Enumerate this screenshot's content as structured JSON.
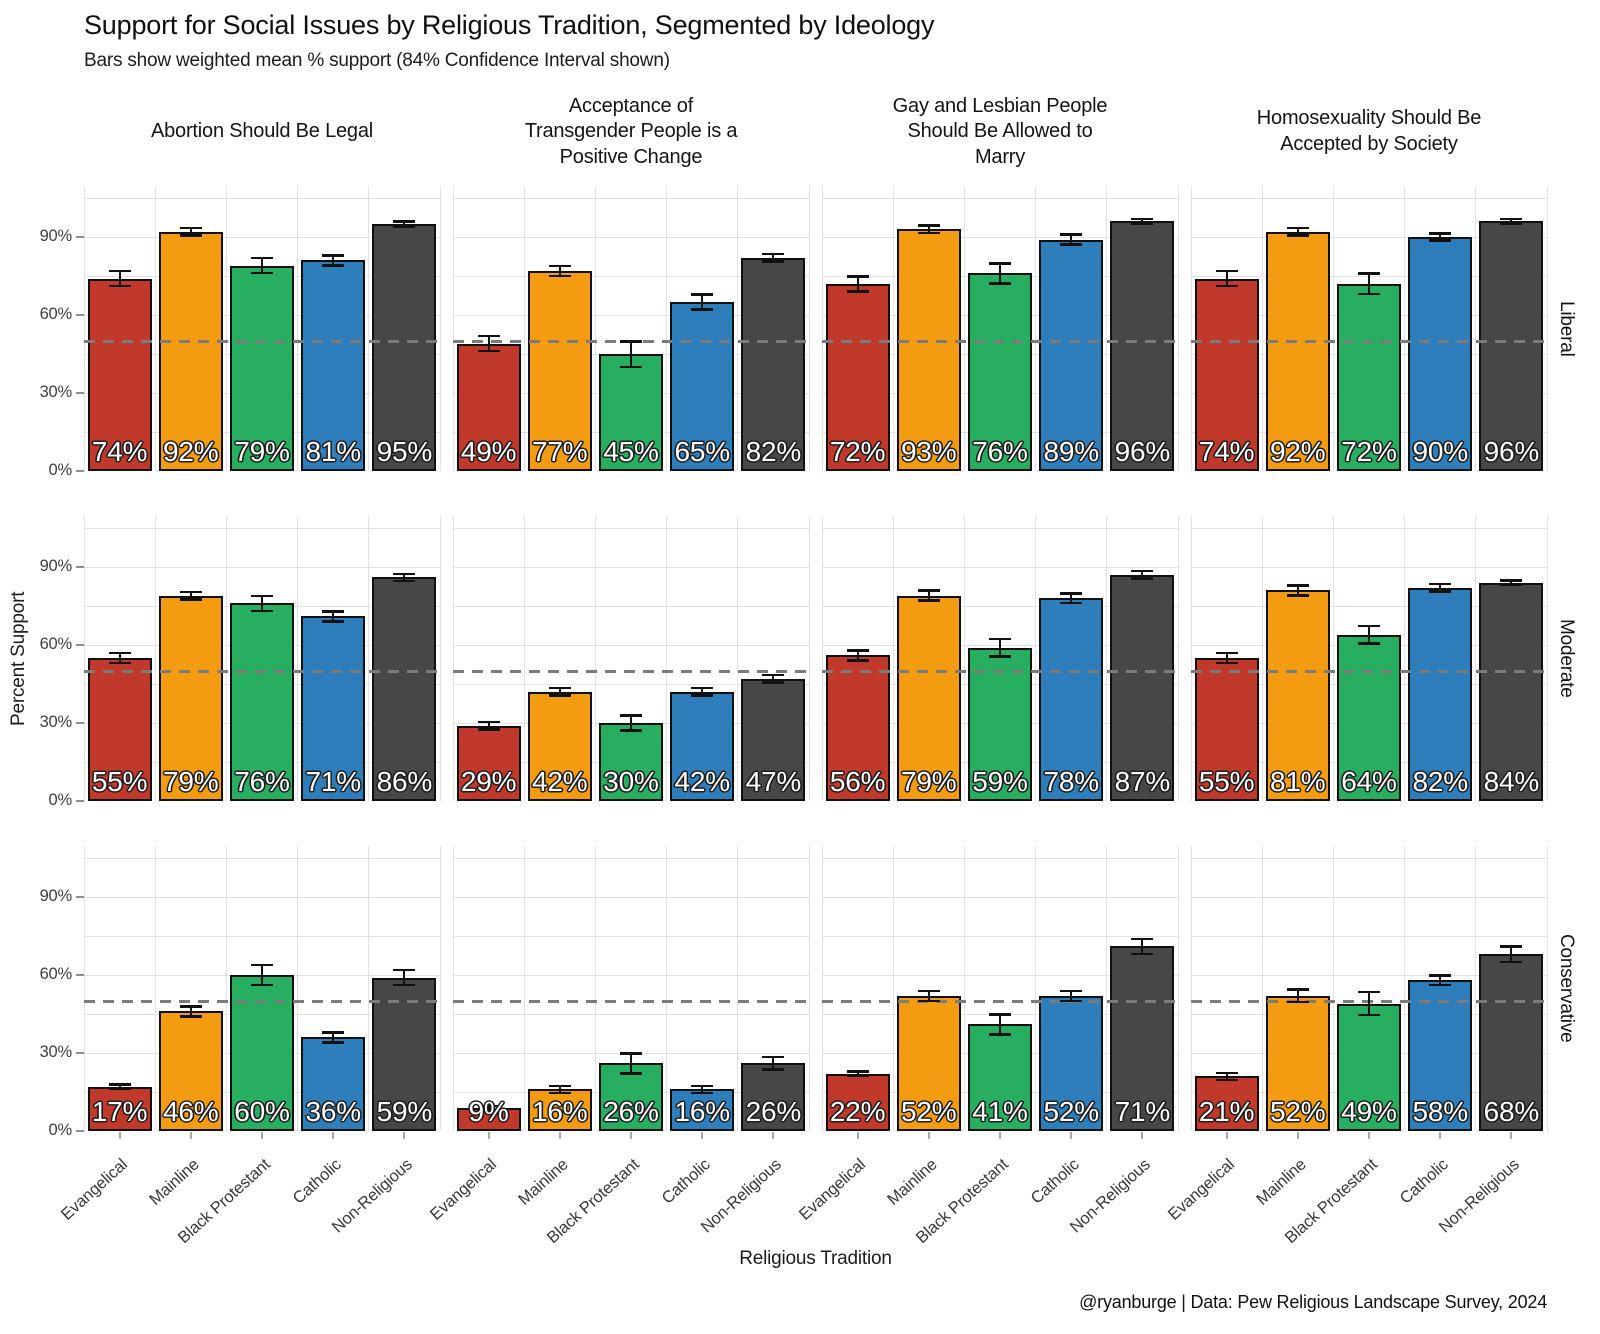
{
  "chart_data": {
    "type": "bar",
    "title": "Support for Social Issues by Religious Tradition, Segmented by Ideology",
    "subtitle": "Bars show weighted mean % support (84% Confidence Interval shown)",
    "caption": "@ryanburge | Data: Pew Religious Landscape Survey, 2024",
    "xlabel": "Religious Tradition",
    "ylabel": "Percent Support",
    "legend_position": "none",
    "grid": true,
    "y_axis": {
      "ticks": [
        0,
        30,
        60,
        90
      ],
      "tick_labels": [
        "0%",
        "30%",
        "60%",
        "90%"
      ],
      "ylim": [
        0,
        109
      ]
    },
    "reference_line_pct": 50,
    "categories": [
      "Evangelical",
      "Mainline",
      "Black Protestant",
      "Catholic",
      "Non-Religious"
    ],
    "category_colors": [
      "#C1392B",
      "#F39C12",
      "#27AE60",
      "#2E7EBB",
      "#474747"
    ],
    "col_facets": [
      "Abortion Should Be Legal",
      "Acceptance of\nTransgender People is a\nPositive Change",
      "Gay and Lesbian People\nShould Be Allowed to\nMarry",
      "Homosexuality Should Be\nAccepted by Society"
    ],
    "row_facets": [
      "Liberal",
      "Moderate",
      "Conservative"
    ],
    "cells": [
      {
        "row": "Liberal",
        "col": "Abortion Should Be Legal",
        "values": [
          74,
          92,
          79,
          81,
          95
        ],
        "ci": [
          3,
          1.5,
          3,
          2,
          1
        ],
        "labels": [
          "74%",
          "92%",
          "79%",
          "81%",
          "95%"
        ]
      },
      {
        "row": "Liberal",
        "col": "Acceptance of Transgender People is a Positive Change",
        "values": [
          49,
          77,
          45,
          65,
          82
        ],
        "ci": [
          3,
          2,
          5,
          3,
          1.5
        ],
        "labels": [
          "49%",
          "77%",
          "45%",
          "65%",
          "82%"
        ]
      },
      {
        "row": "Liberal",
        "col": "Gay and Lesbian People Should Be Allowed to Marry",
        "values": [
          72,
          93,
          76,
          89,
          96
        ],
        "ci": [
          3,
          1.5,
          4,
          2,
          1
        ],
        "labels": [
          "72%",
          "93%",
          "76%",
          "89%",
          "96%"
        ]
      },
      {
        "row": "Liberal",
        "col": "Homosexuality Should Be Accepted by Society",
        "values": [
          74,
          92,
          72,
          90,
          96
        ],
        "ci": [
          3,
          1.5,
          4,
          1.5,
          1
        ],
        "labels": [
          "74%",
          "92%",
          "72%",
          "90%",
          "96%"
        ]
      },
      {
        "row": "Moderate",
        "col": "Abortion Should Be Legal",
        "values": [
          55,
          79,
          76,
          71,
          86
        ],
        "ci": [
          2,
          1.5,
          3,
          2,
          1.5
        ],
        "labels": [
          "55%",
          "79%",
          "76%",
          "71%",
          "86%"
        ]
      },
      {
        "row": "Moderate",
        "col": "Acceptance of Transgender People is a Positive Change",
        "values": [
          29,
          42,
          30,
          42,
          47
        ],
        "ci": [
          1.5,
          1.5,
          3,
          1.5,
          1.5
        ],
        "labels": [
          "29%",
          "42%",
          "30%",
          "42%",
          "47%"
        ]
      },
      {
        "row": "Moderate",
        "col": "Gay and Lesbian People Should Be Allowed to Marry",
        "values": [
          56,
          79,
          59,
          78,
          87
        ],
        "ci": [
          2,
          2,
          3.5,
          2,
          1.5
        ],
        "labels": [
          "56%",
          "79%",
          "59%",
          "78%",
          "87%"
        ]
      },
      {
        "row": "Moderate",
        "col": "Homosexuality Should Be Accepted by Society",
        "values": [
          55,
          81,
          64,
          82,
          84
        ],
        "ci": [
          2,
          2,
          3.5,
          1.5,
          1
        ],
        "labels": [
          "55%",
          "81%",
          "64%",
          "82%",
          "84%"
        ]
      },
      {
        "row": "Conservative",
        "col": "Abortion Should Be Legal",
        "values": [
          17,
          46,
          60,
          36,
          59
        ],
        "ci": [
          1,
          2,
          4,
          2,
          3
        ],
        "labels": [
          "17%",
          "46%",
          "60%",
          "36%",
          "59%"
        ]
      },
      {
        "row": "Conservative",
        "col": "Acceptance of Transgender People is a Positive Change",
        "values": [
          9,
          16,
          26,
          16,
          26
        ],
        "ci": [
          0.8,
          1.5,
          4,
          1.5,
          2.5
        ],
        "labels": [
          "9%",
          "16%",
          "26%",
          "16%",
          "26%"
        ]
      },
      {
        "row": "Conservative",
        "col": "Gay and Lesbian People Should Be Allowed to Marry",
        "values": [
          22,
          52,
          41,
          52,
          71
        ],
        "ci": [
          1,
          2,
          4,
          2,
          3
        ],
        "labels": [
          "22%",
          "52%",
          "41%",
          "52%",
          "71%"
        ]
      },
      {
        "row": "Conservative",
        "col": "Homosexuality Should Be Accepted by Society",
        "values": [
          21,
          52,
          49,
          58,
          68
        ],
        "ci": [
          1.5,
          2.5,
          4.5,
          2,
          3
        ],
        "labels": [
          "21%",
          "52%",
          "49%",
          "58%",
          "68%"
        ]
      }
    ]
  }
}
